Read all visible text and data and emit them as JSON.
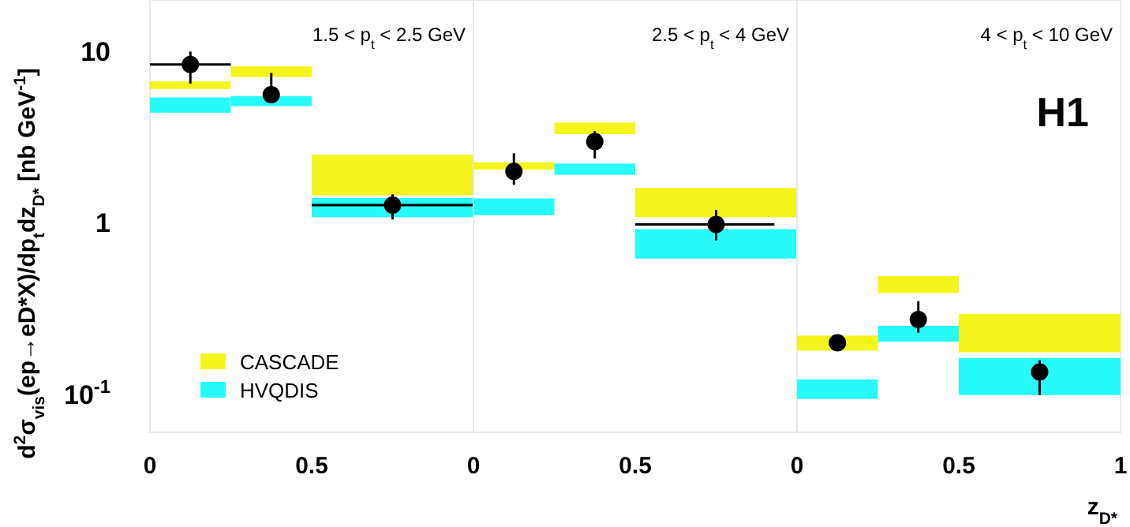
{
  "chart_data": [
    {
      "type": "histogram",
      "title": "1.5 < p$_{t}$ < 2.5 GeV",
      "ylabel": "d$^{2}$σ$_{vis}$(ep→eD*X)/dp$_{t}$dz$_{D*}$ [nb GeV$^{-1}$]",
      "log": "y",
      "legend": "bottom left",
      "xlim": [
        0,
        1
      ],
      "xticks": [
        0,
        0.5
      ],
      "ylim": [
        0.06,
        20
      ],
      "yticks": [
        10,
        1,
        {
          "value": 0.1,
          "label": "10$^{-1}$"
        }
      ],
      "series": [
        {
          "name": "CASCADE",
          "color": "#f5f51e",
          "bins": [
            0,
            0.25,
            0.5,
            1
          ],
          "base": [
            6.05,
            7.1,
            1.45
          ],
          "values": [
            0.65,
            1.1,
            1.05
          ]
        },
        {
          "name": "HVQDIS",
          "color": "#28fafa",
          "bins": [
            0,
            0.25,
            0.5,
            1
          ],
          "base": [
            4.4,
            4.8,
            1.08
          ],
          "values": [
            1.0,
            0.7,
            0.32
          ]
        },
        {
          "type": "scatter",
          "color": "#000000",
          "marker": "circle",
          "x": [
            0.125,
            0.375,
            0.75
          ],
          "values": [
            8.4,
            5.6,
            1.27
          ],
          "errors": [
            [
              6.5,
              10
            ],
            [
              5.0,
              7.5
            ],
            [
              1.05,
              1.47
            ]
          ],
          "xerrors": [
            [
              0,
              0.25
            ],
            null,
            [
              0.5,
              1
            ]
          ]
        }
      ]
    },
    {
      "type": "histogram",
      "title": "2.5 < p$_{t}$ < 4 GeV",
      "log": "y",
      "tick_labels": "x",
      "xlim": [
        0,
        1
      ],
      "xticks": [
        0,
        0.5
      ],
      "ylim": [
        0.06,
        20
      ],
      "series": [
        {
          "color": "#f5f51e",
          "bins": [
            0,
            0.25,
            0.5,
            1
          ],
          "base": [
            2.05,
            3.3,
            1.08
          ],
          "values": [
            0.21,
            0.55,
            0.52
          ]
        },
        {
          "color": "#28fafa",
          "bins": [
            0,
            0.25,
            0.5,
            1
          ],
          "base": [
            1.11,
            1.91,
            0.62
          ],
          "values": [
            0.28,
            0.31,
            0.3
          ]
        },
        {
          "type": "scatter",
          "color": "#000000",
          "marker": "circle",
          "x": [
            0.125,
            0.375,
            0.75
          ],
          "values": [
            2.0,
            2.98,
            0.98
          ],
          "errors": [
            [
              1.67,
              2.55
            ],
            [
              2.38,
              3.43
            ],
            [
              0.79,
              1.19
            ]
          ],
          "xerrors": [
            null,
            null,
            [
              0.5,
              0.93
            ]
          ]
        }
      ]
    },
    {
      "type": "histogram",
      "title": "4 < p$_{t}$ < 10 GeV",
      "xlabel": "z$_{D*}$",
      "annotations": [
        "H1"
      ],
      "log": "y",
      "tick_labels": "x",
      "xlim": [
        0,
        1
      ],
      "xticks": [
        0,
        0.5,
        1
      ],
      "ylim": [
        0.06,
        20
      ],
      "series": [
        {
          "color": "#f5f51e",
          "bins": [
            0,
            0.25,
            0.5,
            1
          ],
          "base": [
            0.18,
            0.39,
            0.176
          ],
          "values": [
            0.04,
            0.1,
            0.119
          ]
        },
        {
          "color": "#28fafa",
          "bins": [
            0,
            0.25,
            0.5,
            1
          ],
          "base": [
            0.094,
            0.203,
            0.099
          ],
          "values": [
            0.028,
            0.048,
            0.064
          ]
        },
        {
          "type": "scatter",
          "color": "#000000",
          "marker": "circle",
          "x": [
            0.125,
            0.375,
            0.75
          ],
          "values": [
            0.2,
            0.273,
            0.135
          ],
          "errors": [
            null,
            [
              0.229,
              0.35
            ],
            [
              0.099,
              0.158
            ]
          ]
        }
      ]
    }
  ]
}
